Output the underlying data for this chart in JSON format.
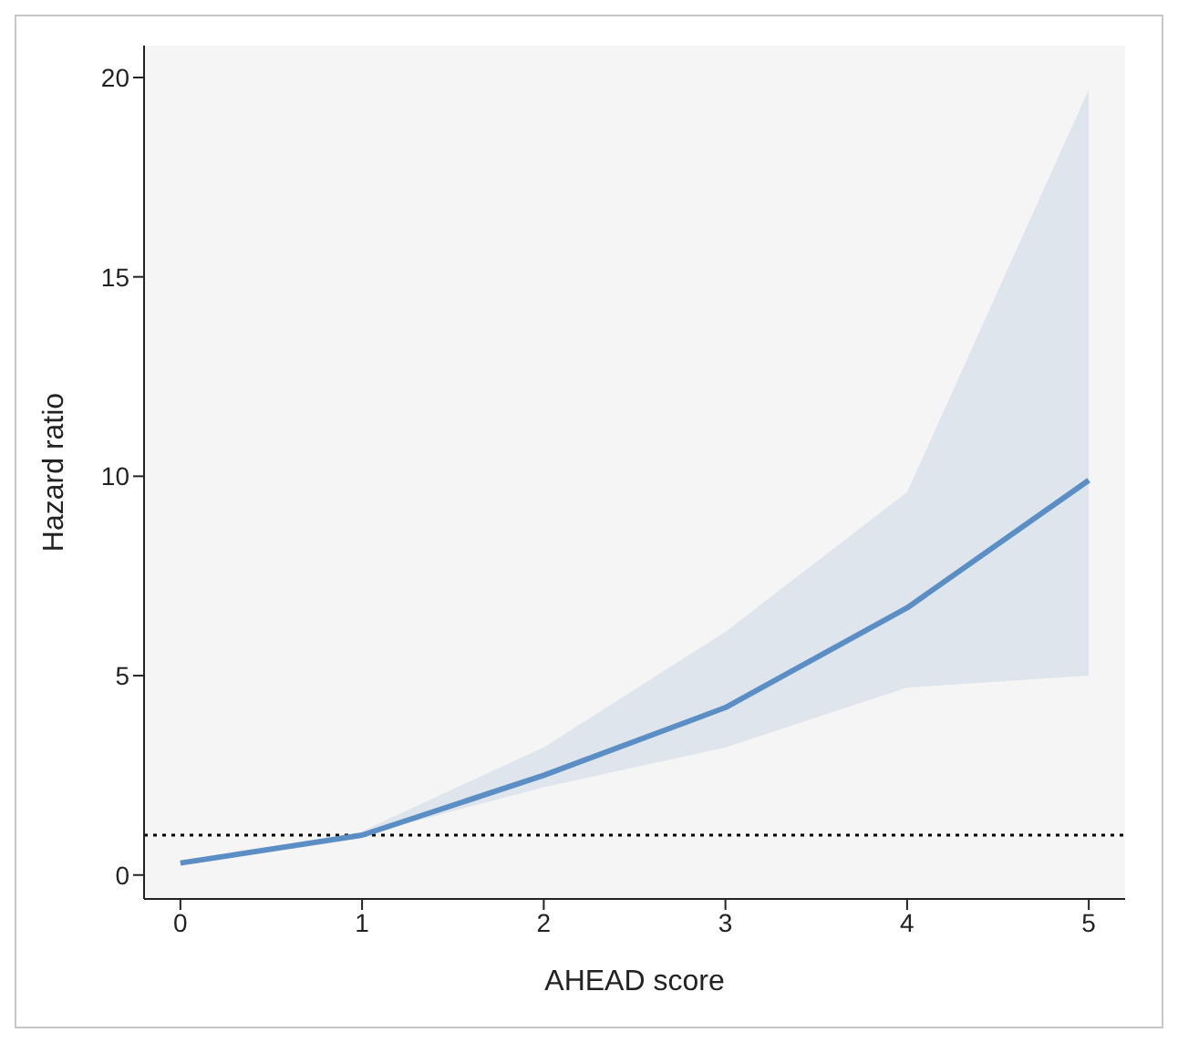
{
  "chart_data": {
    "type": "line",
    "xlabel": "AHEAD score",
    "ylabel": "Hazard ratio",
    "x": [
      0,
      1,
      2,
      3,
      4,
      5
    ],
    "series": [
      {
        "color": "#5b8ec4",
        "values": [
          0.3,
          1.0,
          2.5,
          4.2,
          6.7,
          9.9
        ],
        "lower": [
          null,
          1.0,
          2.2,
          3.2,
          4.7,
          5.0
        ],
        "upper": [
          null,
          1.1,
          3.2,
          6.1,
          9.6,
          19.7
        ]
      }
    ],
    "xlim": [
      -0.2,
      5.2
    ],
    "xticks": [
      0,
      1,
      2,
      3,
      4,
      5
    ],
    "ylim": [
      -0.6,
      20.8
    ],
    "yticks": [
      0,
      5,
      10,
      15,
      20
    ],
    "ref_lines": [
      {
        "axis": "y",
        "value": 1,
        "color": "#000000",
        "line_style": "dotted"
      }
    ],
    "legend": false,
    "marker": "none",
    "line_style": "solid"
  }
}
